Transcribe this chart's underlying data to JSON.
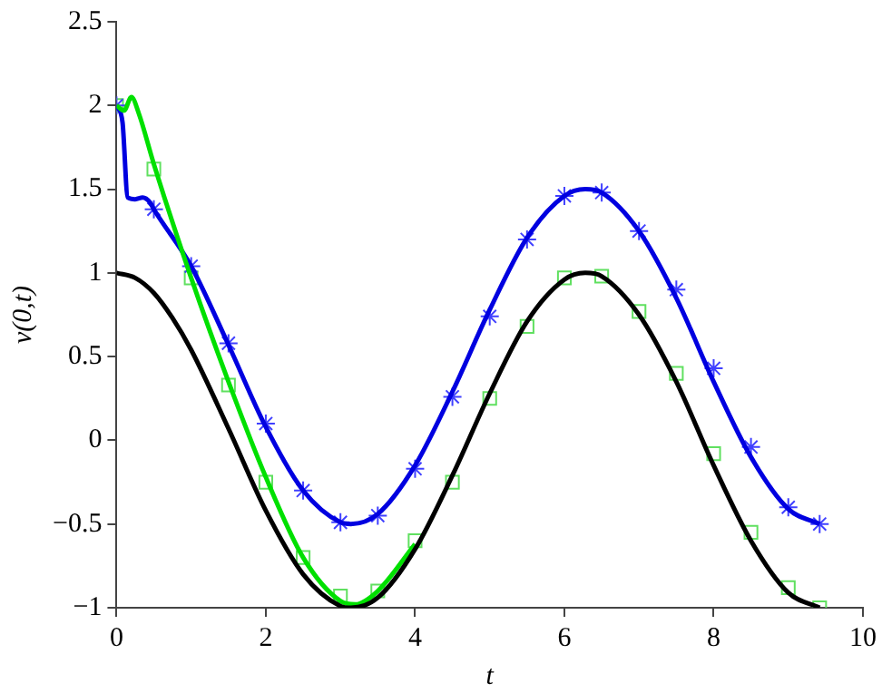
{
  "chart_data": {
    "type": "line",
    "xlabel": "t",
    "ylabel": "v(0,t)",
    "xlim": [
      0,
      10
    ],
    "xticks": [
      0,
      2,
      4,
      6,
      8,
      10
    ],
    "ylim": [
      -1,
      2.5
    ],
    "yticks": [
      {
        "value": -1,
        "label": "−1"
      },
      {
        "value": -0.5,
        "label": "−0.5"
      },
      0,
      0.5,
      1,
      1.5,
      2,
      2.5
    ],
    "grid": false,
    "legend": false,
    "series": [
      {
        "type": "line",
        "color": "#000000",
        "marker": "none",
        "x": [
          0,
          0.25,
          0.5,
          0.75,
          1,
          1.5,
          2,
          2.5,
          3,
          3.14,
          3.5,
          4,
          4.5,
          5,
          5.5,
          6,
          6.28,
          6.5,
          7,
          7.5,
          8,
          8.5,
          9,
          9.42
        ],
        "values": [
          1,
          0.97,
          0.88,
          0.73,
          0.54,
          0.07,
          -0.42,
          -0.8,
          -0.99,
          -1,
          -0.94,
          -0.65,
          -0.21,
          0.28,
          0.71,
          0.96,
          1,
          0.98,
          0.75,
          0.35,
          -0.15,
          -0.6,
          -0.91,
          -1
        ]
      },
      {
        "type": "line",
        "color": "#00e000",
        "marker": "none",
        "x": [
          0,
          0.1,
          0.2,
          0.3,
          0.5,
          1,
          1.5,
          2,
          2.5,
          3,
          3.2,
          3.5,
          4
        ],
        "values": [
          2,
          1.97,
          2.05,
          1.95,
          1.65,
          0.97,
          0.35,
          -0.22,
          -0.7,
          -0.96,
          -0.98,
          -0.9,
          -0.62
        ]
      },
      {
        "type": "line",
        "color": "#0000e0",
        "marker": "none",
        "x": [
          0,
          0.08,
          0.15,
          0.25,
          0.35,
          0.45,
          0.5,
          1,
          1.5,
          2,
          2.5,
          3,
          3.14,
          3.5,
          4,
          4.5,
          5,
          5.5,
          6,
          6.28,
          6.5,
          7,
          7.5,
          8,
          8.5,
          9,
          9.42
        ],
        "values": [
          2,
          1.9,
          1.45,
          1.44,
          1.45,
          1.42,
          1.38,
          1.04,
          0.57,
          0.08,
          -0.3,
          -0.49,
          -0.5,
          -0.44,
          -0.15,
          0.29,
          0.78,
          1.21,
          1.46,
          1.5,
          1.48,
          1.25,
          0.85,
          0.35,
          -0.1,
          -0.41,
          -0.5
        ]
      },
      {
        "type": "scatter",
        "color": "#4040ff",
        "marker": "cross",
        "x": [
          0,
          0.5,
          1,
          1.5,
          2,
          2.5,
          3,
          3.5,
          4,
          4.5,
          5,
          5.5,
          6,
          6.5,
          7,
          7.5,
          8,
          8.5,
          9,
          9.42
        ],
        "values": [
          2,
          1.38,
          1.04,
          0.58,
          0.1,
          -0.3,
          -0.49,
          -0.45,
          -0.17,
          0.26,
          0.74,
          1.2,
          1.46,
          1.48,
          1.25,
          0.9,
          0.43,
          -0.04,
          -0.4,
          -0.5
        ]
      },
      {
        "type": "scatter",
        "color": "#60e060",
        "marker": "square",
        "x": [
          0,
          0.5,
          1,
          1.5,
          2,
          2.5,
          3,
          3.5,
          4,
          4.5,
          5,
          5.5,
          6,
          6.5,
          7,
          7.5,
          8,
          8.5,
          9,
          9.42
        ],
        "values": [
          2,
          1.62,
          0.97,
          0.33,
          -0.25,
          -0.7,
          -0.93,
          -0.9,
          -0.6,
          -0.25,
          0.25,
          0.68,
          0.97,
          0.98,
          0.77,
          0.4,
          -0.08,
          -0.55,
          -0.88,
          -1
        ]
      }
    ]
  }
}
